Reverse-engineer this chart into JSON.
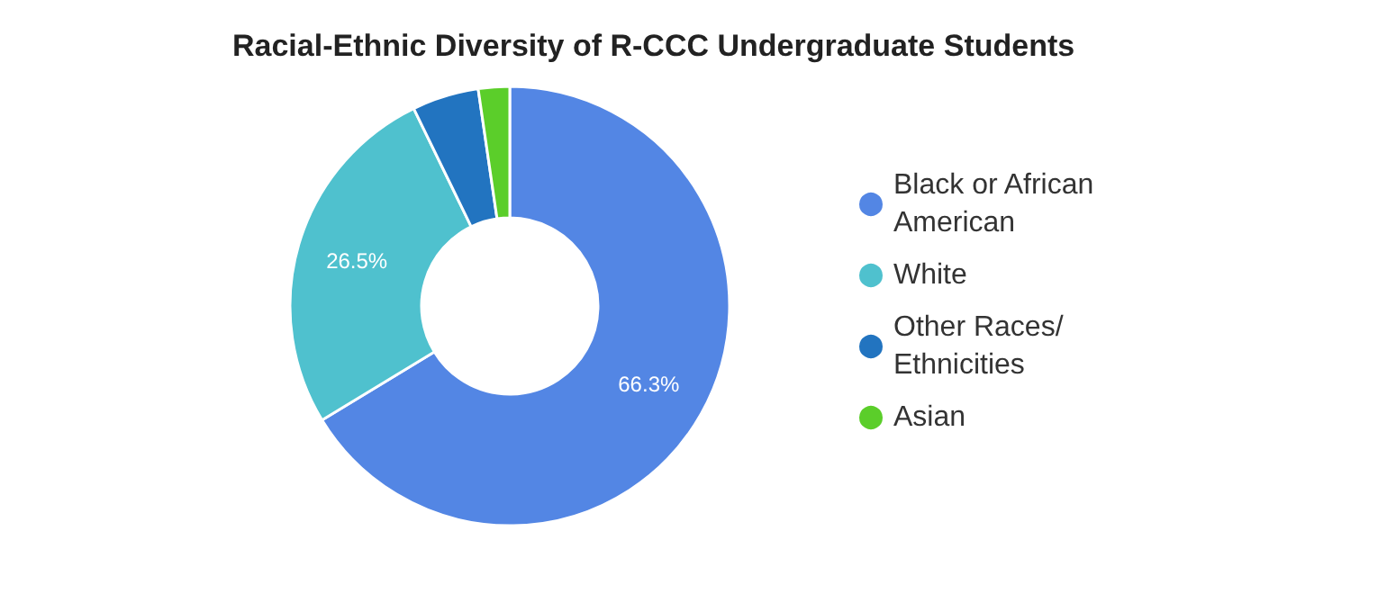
{
  "chart_data": {
    "type": "donut",
    "title": "Racial-Ethnic Diversity of R-CCC Undergraduate Students",
    "categories": [
      "Black or African American",
      "White",
      "Other Races/ Ethnicities",
      "Asian"
    ],
    "values": [
      66.3,
      26.5,
      4.9,
      2.3
    ],
    "colors": [
      "#5386e4",
      "#4fc1ce",
      "#2274c0",
      "#5bce2a"
    ],
    "value_labels": [
      "66.3%",
      "26.5%",
      null,
      null
    ],
    "legend": "right"
  }
}
